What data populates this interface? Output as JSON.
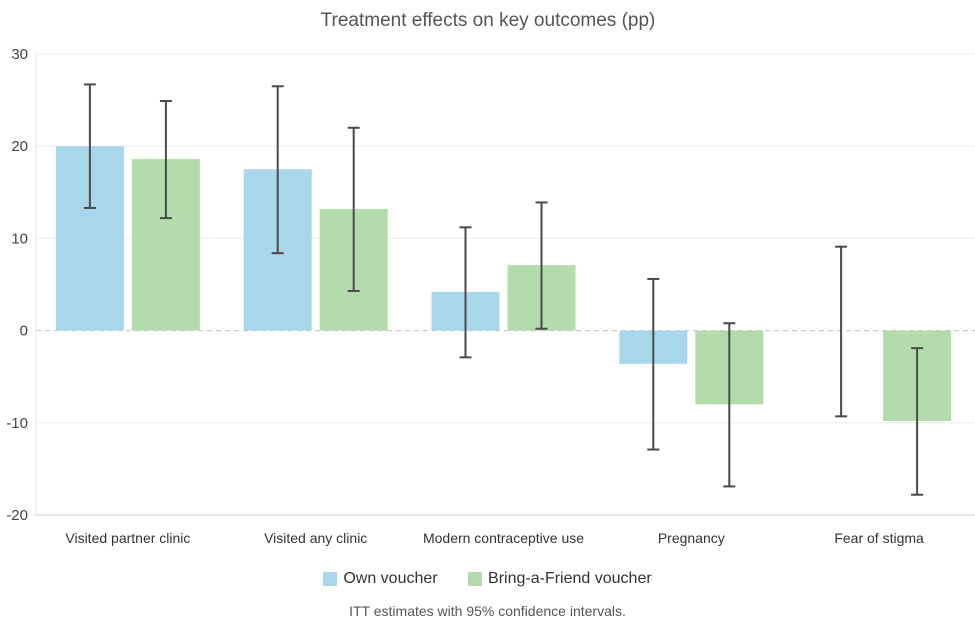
{
  "chart_data": {
    "type": "bar",
    "title": "Treatment effects on key outcomes (pp)",
    "categories": [
      "Visited partner clinic",
      "Visited any clinic",
      "Modern contraceptive use",
      "Pregnancy",
      "Fear of stigma"
    ],
    "series": [
      {
        "name": "Own voucher",
        "color": "#a8d6ea",
        "values": [
          20.0,
          17.5,
          4.2,
          -3.6,
          null
        ],
        "ci_low": [
          13.3,
          8.4,
          -2.9,
          -12.9,
          -9.3
        ],
        "ci_high": [
          26.7,
          26.5,
          11.2,
          5.6,
          9.1
        ]
      },
      {
        "name": "Bring-a-Friend voucher",
        "color": "#b4dbac",
        "values": [
          18.6,
          13.2,
          7.1,
          -8.0,
          -9.8
        ],
        "ci_low": [
          12.2,
          4.3,
          0.2,
          -16.9,
          -17.8
        ],
        "ci_high": [
          24.9,
          22.0,
          13.9,
          0.8,
          -1.9
        ]
      }
    ],
    "ylim": [
      -20,
      30
    ],
    "yticks": [
      -20,
      -10,
      0,
      10,
      20,
      30
    ],
    "grid": true,
    "zero_line": "dashed",
    "legend_position": "bottom"
  },
  "footnote": "ITT estimates with 95% confidence intervals."
}
